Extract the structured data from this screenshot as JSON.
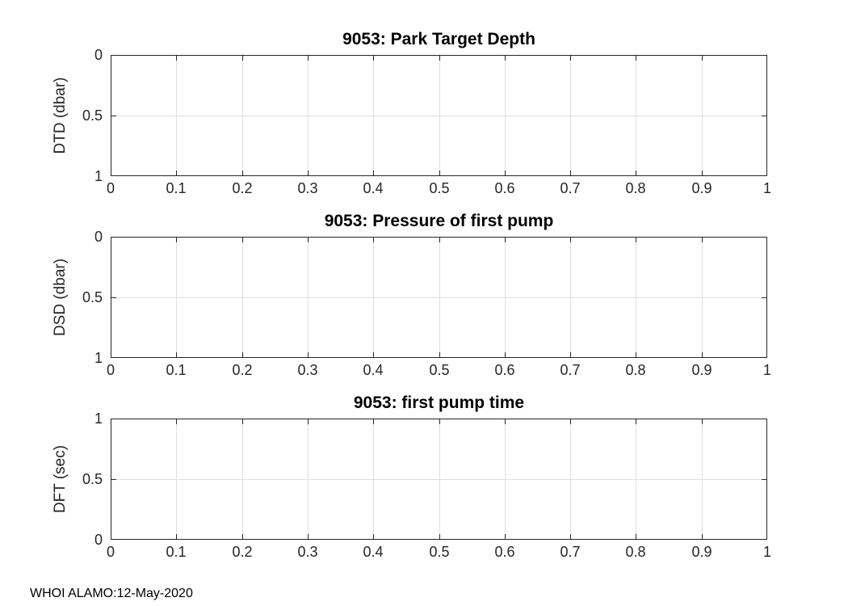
{
  "figure": {
    "footer": "WHOI ALAMO:12-May-2020"
  },
  "colors": {
    "axis": "#262626",
    "grid": "#e0e0e0",
    "title": "#000000",
    "background": "#ffffff"
  },
  "chart_data": [
    {
      "type": "line",
      "title": "9053: Park Target Depth",
      "xlabel": "",
      "ylabel": "DTD (dbar)",
      "xlim": [
        0,
        1
      ],
      "ylim": [
        0,
        1
      ],
      "ydir": "reverse",
      "grid": true,
      "legend": null,
      "xtick_values": [
        0,
        0.1,
        0.2,
        0.3,
        0.4,
        0.5,
        0.6,
        0.7,
        0.8,
        0.9,
        1
      ],
      "xtick_labels": [
        "0",
        "0.1",
        "0.2",
        "0.3",
        "0.4",
        "0.5",
        "0.6",
        "0.7",
        "0.8",
        "0.9",
        "1"
      ],
      "ytick_values": [
        0,
        0.5,
        1
      ],
      "ytick_labels": [
        "0",
        "0.5",
        "1"
      ],
      "series": []
    },
    {
      "type": "line",
      "title": "9053: Pressure of first pump",
      "xlabel": "",
      "ylabel": "DSD (dbar)",
      "xlim": [
        0,
        1
      ],
      "ylim": [
        0,
        1
      ],
      "ydir": "reverse",
      "grid": true,
      "legend": null,
      "xtick_values": [
        0,
        0.1,
        0.2,
        0.3,
        0.4,
        0.5,
        0.6,
        0.7,
        0.8,
        0.9,
        1
      ],
      "xtick_labels": [
        "0",
        "0.1",
        "0.2",
        "0.3",
        "0.4",
        "0.5",
        "0.6",
        "0.7",
        "0.8",
        "0.9",
        "1"
      ],
      "ytick_values": [
        0,
        0.5,
        1
      ],
      "ytick_labels": [
        "0",
        "0.5",
        "1"
      ],
      "series": []
    },
    {
      "type": "line",
      "title": "9053: first pump time",
      "xlabel": "",
      "ylabel": "DFT (sec)",
      "xlim": [
        0,
        1
      ],
      "ylim": [
        0,
        1
      ],
      "ydir": "normal",
      "grid": true,
      "legend": null,
      "xtick_values": [
        0,
        0.1,
        0.2,
        0.3,
        0.4,
        0.5,
        0.6,
        0.7,
        0.8,
        0.9,
        1
      ],
      "xtick_labels": [
        "0",
        "0.1",
        "0.2",
        "0.3",
        "0.4",
        "0.5",
        "0.6",
        "0.7",
        "0.8",
        "0.9",
        "1"
      ],
      "ytick_values": [
        0,
        0.5,
        1
      ],
      "ytick_labels": [
        "0",
        "0.5",
        "1"
      ],
      "series": []
    }
  ]
}
